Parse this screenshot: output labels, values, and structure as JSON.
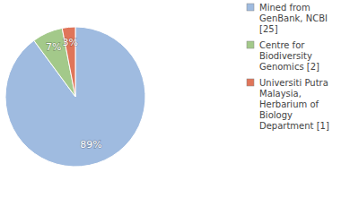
{
  "chart_data": {
    "type": "pie",
    "categories": [
      "Mined from GenBank, NCBI [25]",
      "Centre for Biodiversity Genomics [2]",
      "Universiti Putra Malaysia, Herbarium of Biology Department [1]"
    ],
    "values": [
      89,
      7,
      3
    ],
    "value_labels": [
      "89%",
      "7%",
      "3%"
    ],
    "colors": [
      "#9fbbe0",
      "#a3c98a",
      "#e0755a"
    ],
    "data_labels": true,
    "legend": "right"
  }
}
